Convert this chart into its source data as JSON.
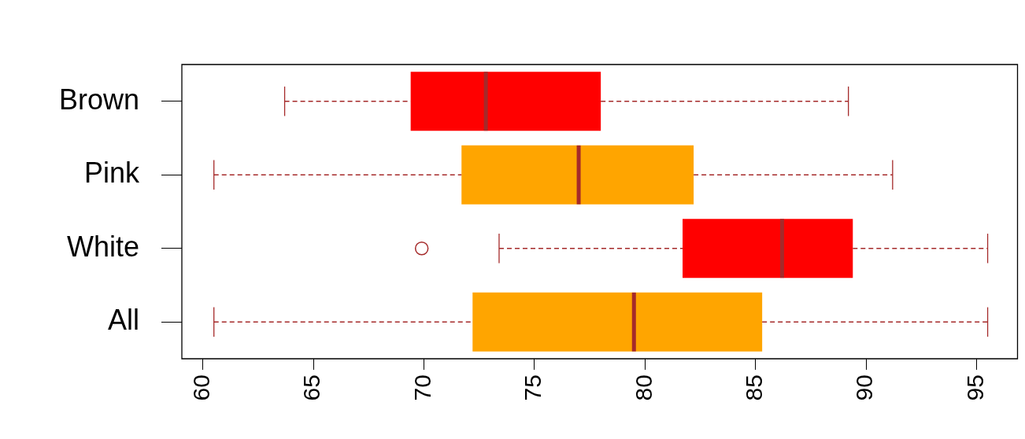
{
  "chart_data": {
    "type": "box",
    "orientation": "horizontal",
    "categories": [
      "Brown",
      "Pink",
      "White",
      "All"
    ],
    "boxes": [
      {
        "low": 63.7,
        "q1": 69.4,
        "median": 72.8,
        "q3": 78.0,
        "high": 89.2
      },
      {
        "low": 60.5,
        "q1": 71.7,
        "median": 77.0,
        "q3": 82.2,
        "high": 91.2
      },
      {
        "low": 73.4,
        "q1": 81.7,
        "median": 86.2,
        "q3": 89.4,
        "high": 95.5,
        "outliers": [
          69.9
        ]
      },
      {
        "low": 60.5,
        "q1": 72.2,
        "median": 79.5,
        "q3": 85.3,
        "high": 95.5
      }
    ],
    "colors": [
      "#ff0000",
      "#ffa500",
      "#ff0000",
      "#ffa500"
    ],
    "xlim": [
      59.05,
      96.85
    ],
    "xticks": [
      60,
      65,
      70,
      75,
      80,
      85,
      90,
      95
    ],
    "grid": false,
    "legend": false
  }
}
